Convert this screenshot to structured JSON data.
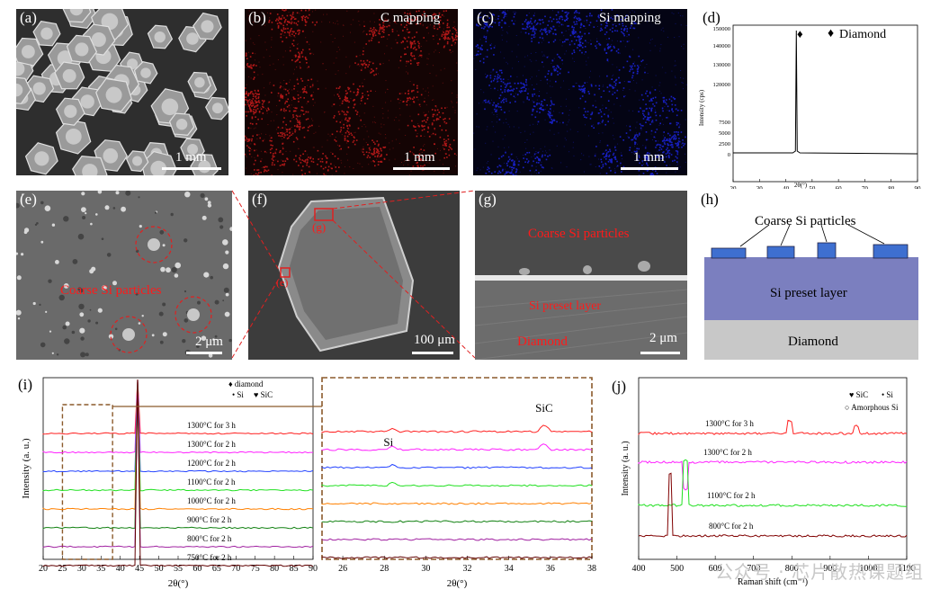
{
  "panel_labels": {
    "a": "(a)",
    "b": "(b)",
    "c": "(c)",
    "d": "(d)",
    "e": "(e)",
    "f": "(f)",
    "g": "(g)",
    "h": "(h)",
    "i": "(i)",
    "j": "(j)"
  },
  "panel_a": {
    "scale": "1 mm"
  },
  "panel_b": {
    "title": "C mapping",
    "scale": "1 mm",
    "color": "#b01818"
  },
  "panel_c": {
    "title": "Si mapping",
    "scale": "1 mm",
    "color": "#1820c0"
  },
  "panel_e": {
    "annotation": "Coarse Si particles",
    "scale": "2 μm"
  },
  "panel_f": {
    "box_g": "(g)",
    "box_e": "(e)",
    "scale": "100 μm"
  },
  "panel_g": {
    "ann_coarse": "Coarse Si particles",
    "ann_layer": "Si preset layer",
    "ann_diamond": "Diamond",
    "scale": "2 μm"
  },
  "panel_h": {
    "coarse": "Coarse Si particles",
    "layer": "Si preset layer",
    "diamond": "Diamond",
    "layer_color": "#7b7fbf",
    "diamond_color": "#c8c8c8",
    "particle_color": "#3e6fd0"
  },
  "chart_data": [
    {
      "panel": "(d)",
      "type": "line",
      "xlabel": "2θ(°)",
      "ylabel": "Intensity (cps)",
      "legend": "Diamond",
      "x_ticks": [
        20,
        30,
        40,
        50,
        60,
        70,
        80,
        90
      ],
      "y_ticks_lower": [
        "0",
        "2500",
        "5000",
        "7500"
      ],
      "y_ticks_upper": [
        "120000",
        "130000",
        "140000",
        "150000"
      ],
      "peak_x": 44,
      "peak_label": "♦"
    },
    {
      "panel": "(i)",
      "type": "line",
      "xlabel": "2θ(°)",
      "ylabel": "Intensity (a. u.)",
      "x_ticks": [
        20,
        25,
        30,
        35,
        40,
        45,
        50,
        55,
        60,
        65,
        70,
        75,
        80,
        85,
        90
      ],
      "legend": [
        "♦ diamond",
        "• Si",
        "♥ SiC"
      ],
      "series": [
        {
          "name": "1300°C for 3 h",
          "color": "#ff2020"
        },
        {
          "name": "1300°C for 2 h",
          "color": "#ff20ff"
        },
        {
          "name": "1200°C for 2 h",
          "color": "#2040ff"
        },
        {
          "name": "1100°C for 2 h",
          "color": "#20e020"
        },
        {
          "name": "1000°C for 2 h",
          "color": "#ff8000"
        },
        {
          "name": "900°C for 2 h",
          "color": "#108010"
        },
        {
          "name": "800°C for 2 h",
          "color": "#a020a0"
        },
        {
          "name": "750°C for 2 h",
          "color": "#600000"
        }
      ]
    },
    {
      "panel": "(i) inset",
      "type": "line",
      "xlabel": "2θ(°)",
      "x_ticks": [
        26,
        28,
        30,
        32,
        34,
        36,
        38
      ],
      "peak_labels": [
        "Si",
        "SiC"
      ]
    },
    {
      "panel": "(j)",
      "type": "line",
      "xlabel": "Raman shift (cm⁻¹)",
      "ylabel": "Intensity (a. u.)",
      "x_ticks": [
        400,
        500,
        600,
        700,
        800,
        900,
        1000,
        1100
      ],
      "legend": [
        "♥ SiC",
        "• Si",
        "○ Amorphous Si"
      ],
      "series": [
        {
          "name": "1300°C for 3 h",
          "color": "#ff2020"
        },
        {
          "name": "1300°C for 2 h",
          "color": "#ff20ff"
        },
        {
          "name": "1100°C for 2 h",
          "color": "#20e020"
        },
        {
          "name": "800°C for 2 h",
          "color": "#800000"
        }
      ]
    }
  ],
  "watermark": "公众号 · 芯片散热课题组"
}
